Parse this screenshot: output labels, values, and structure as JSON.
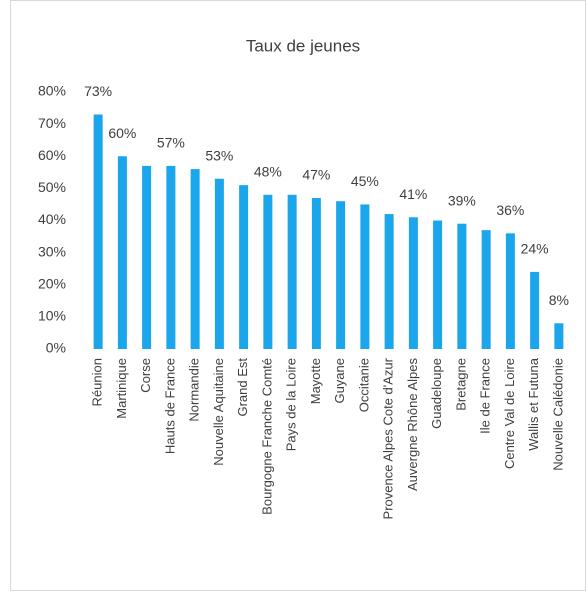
{
  "chart_data": {
    "type": "bar",
    "title": "Taux de jeunes",
    "categories": [
      "Réunion",
      "Martinique",
      "Corse",
      "Hauts de France",
      "Normandie",
      "Nouvelle Aquitaine",
      "Grand Est",
      "Bourgogne Franche Comté",
      "Pays de la Loire",
      "Mayotte",
      "Guyane",
      "Occitanie",
      "Provence Alpes Cote d'Azur",
      "Auvergne Rhône Alpes",
      "Guadeloupe",
      "Bretagne",
      "Ile de France",
      "Centre Val de Loire",
      "Wallis et Futuna",
      "Nouvelle Calédonie"
    ],
    "values": [
      73,
      60,
      57,
      57,
      56,
      53,
      51,
      48,
      48,
      47,
      46,
      45,
      42,
      41,
      40,
      39,
      37,
      36,
      24,
      8
    ],
    "value_labels": [
      "73%",
      "60%",
      null,
      "57%",
      null,
      "53%",
      null,
      "48%",
      null,
      "47%",
      null,
      "45%",
      null,
      "41%",
      null,
      "39%",
      null,
      "36%",
      "24%",
      "8%"
    ],
    "color": "#1ba5eb",
    "ylim": [
      0,
      80
    ],
    "yticks": [
      {
        "value": 0,
        "label": "0%"
      },
      {
        "value": 10,
        "label": "10%"
      },
      {
        "value": 20,
        "label": "20%"
      },
      {
        "value": 30,
        "label": "30%"
      },
      {
        "value": 40,
        "label": "40%"
      },
      {
        "value": 50,
        "label": "50%"
      },
      {
        "value": 60,
        "label": "60%"
      },
      {
        "value": 70,
        "label": "70%"
      },
      {
        "value": 80,
        "label": "80%"
      }
    ],
    "grid": false
  }
}
